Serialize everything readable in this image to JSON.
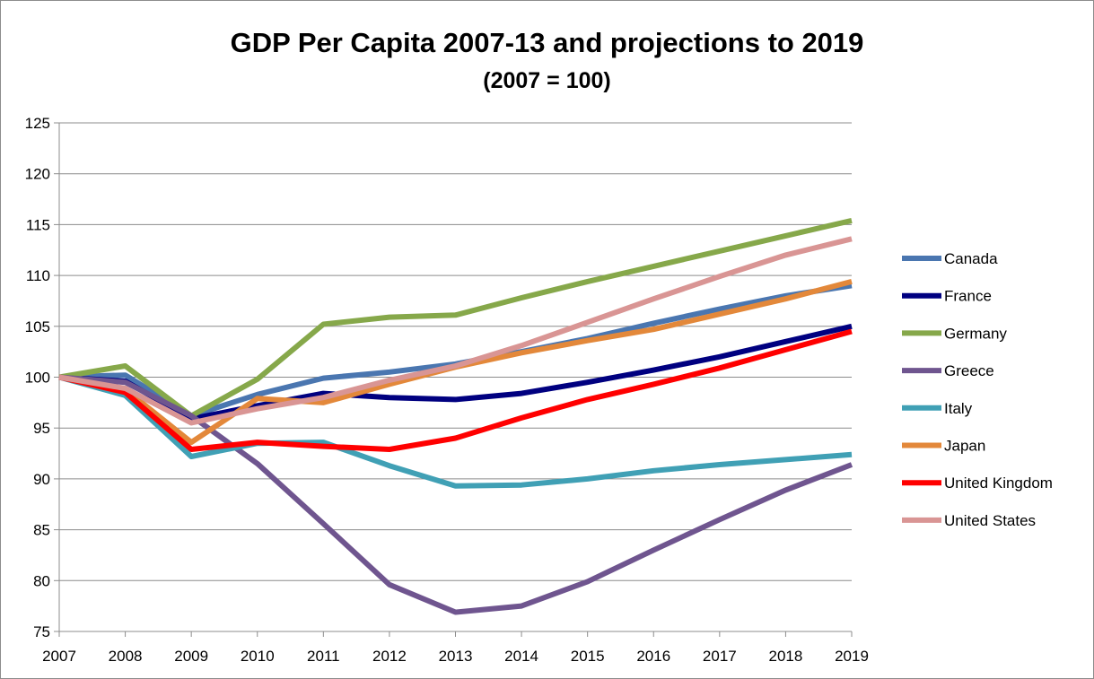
{
  "chart_data": {
    "type": "line",
    "title": "GDP Per Capita 2007-13 and projections to 2019",
    "subtitle": "(2007 = 100)",
    "xlabel": "",
    "ylabel": "",
    "ylim": [
      75,
      125
    ],
    "ytick_step": 5,
    "grid": true,
    "legend_position": "right",
    "categories": [
      "2007",
      "2008",
      "2009",
      "2010",
      "2011",
      "2012",
      "2013",
      "2014",
      "2015",
      "2016",
      "2017",
      "2018",
      "2019"
    ],
    "series": [
      {
        "name": "Canada",
        "color": "#4a76b0",
        "values": [
          100,
          100.2,
          96.2,
          98.3,
          99.9,
          100.5,
          101.3,
          102.5,
          103.8,
          105.3,
          106.7,
          108.0,
          109.0
        ]
      },
      {
        "name": "France",
        "color": "#000080",
        "values": [
          100,
          99.6,
          95.9,
          97.2,
          98.4,
          98.0,
          97.8,
          98.4,
          99.5,
          100.7,
          102.0,
          103.5,
          105.0
        ]
      },
      {
        "name": "Germany",
        "color": "#86a84a",
        "values": [
          100,
          101.1,
          96.2,
          99.8,
          105.2,
          105.9,
          106.1,
          107.8,
          109.4,
          110.9,
          112.4,
          113.9,
          115.4
        ]
      },
      {
        "name": "Greece",
        "color": "#6f558f",
        "values": [
          100,
          99.5,
          96.2,
          91.5,
          85.6,
          79.6,
          76.9,
          77.5,
          79.9,
          83.0,
          86.0,
          88.9,
          91.4
        ]
      },
      {
        "name": "Italy",
        "color": "#40a0b5",
        "values": [
          100,
          98.2,
          92.2,
          93.5,
          93.6,
          91.3,
          89.3,
          89.4,
          90.0,
          90.8,
          91.4,
          91.9,
          92.4
        ]
      },
      {
        "name": "Japan",
        "color": "#e3883a",
        "values": [
          100,
          98.8,
          93.6,
          97.9,
          97.5,
          99.3,
          101.0,
          102.4,
          103.6,
          104.7,
          106.2,
          107.7,
          109.4
        ]
      },
      {
        "name": "United Kingdom",
        "color": "#ff0000",
        "values": [
          100,
          98.5,
          92.9,
          93.6,
          93.2,
          92.9,
          94.0,
          96.0,
          97.8,
          99.3,
          100.9,
          102.7,
          104.5
        ]
      },
      {
        "name": "United States",
        "color": "#d99594",
        "values": [
          100,
          98.9,
          95.5,
          96.9,
          98.0,
          99.7,
          101.1,
          103.1,
          105.4,
          107.7,
          109.9,
          112.0,
          113.6
        ]
      }
    ]
  }
}
